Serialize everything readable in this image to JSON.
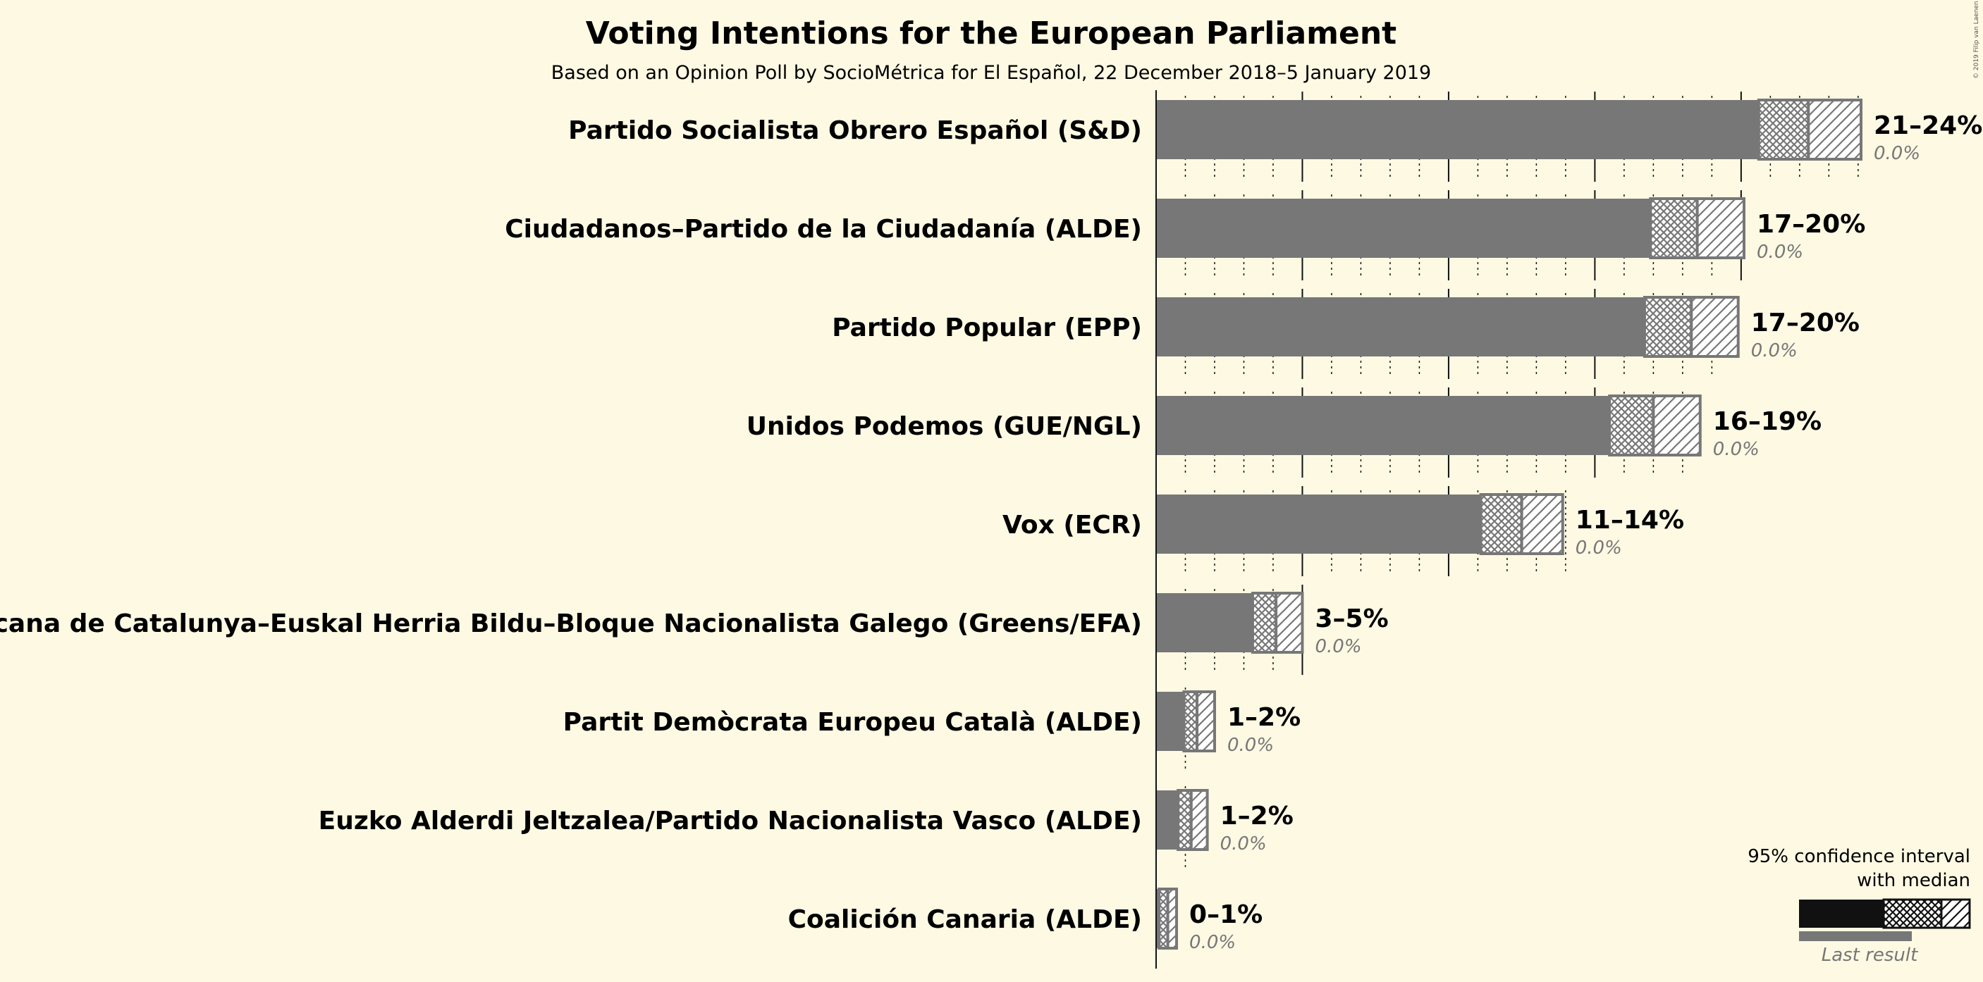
{
  "title": "Voting Intentions for the European Parliament",
  "subtitle": "Based on an Opinion Poll by SocioMétrica for El Español, 22 December 2018–5 January 2019",
  "copyright": "© 2019 Filip van Laenen",
  "legend": {
    "line1": "95% confidence interval",
    "line2": "with median",
    "last_result": "Last result"
  },
  "colors": {
    "background": "#fdf9e3",
    "bar": "#777777",
    "legend_bar": "#111111",
    "last_result": "#777777"
  },
  "chart_data": {
    "type": "bar",
    "orientation": "horizontal",
    "title": "Voting Intentions for the European Parliament",
    "unit": "%",
    "categories": [
      "Partido Socialista Obrero Español (S&D)",
      "Ciudadanos–Partido de la Ciudadanía (ALDE)",
      "Partido Popular (EPP)",
      "Unidos Podemos (GUE/NGL)",
      "Vox (ECR)",
      "Esquerra Republicana de Catalunya–Euskal Herria Bildu–Bloque Nacionalista Galego (Greens/EFA)",
      "Partit Demòcrata Europeu Català (ALDE)",
      "Euzko Alderdi Jeltzalea/Partido Nacionalista Vasco (ALDE)",
      "Coalición Canaria (ALDE)"
    ],
    "ci_low": [
      20.6,
      16.9,
      16.7,
      15.5,
      11.1,
      3.3,
      0.95,
      0.75,
      0.1
    ],
    "median": [
      22.3,
      18.5,
      18.3,
      17.0,
      12.5,
      4.1,
      1.4,
      1.2,
      0.4
    ],
    "ci_high": [
      24.1,
      20.1,
      19.9,
      18.6,
      13.9,
      5.0,
      2.0,
      1.75,
      0.7
    ],
    "range_labels": [
      "21–24%",
      "17–20%",
      "17–20%",
      "16–19%",
      "11–14%",
      "3–5%",
      "1–2%",
      "1–2%",
      "0–1%"
    ],
    "last_result_labels": [
      "0.0%",
      "0.0%",
      "0.0%",
      "0.0%",
      "0.0%",
      "0.0%",
      "0.0%",
      "0.0%",
      "0.0%"
    ],
    "last_result": [
      0,
      0,
      0,
      0,
      0,
      0,
      0,
      0,
      0
    ],
    "grid_max": [
      24,
      20,
      19,
      18,
      14,
      5,
      1,
      1,
      0
    ],
    "xlim": [
      0,
      24.5
    ],
    "major_gridline_every": 5,
    "minor_gridline_every": 1
  }
}
